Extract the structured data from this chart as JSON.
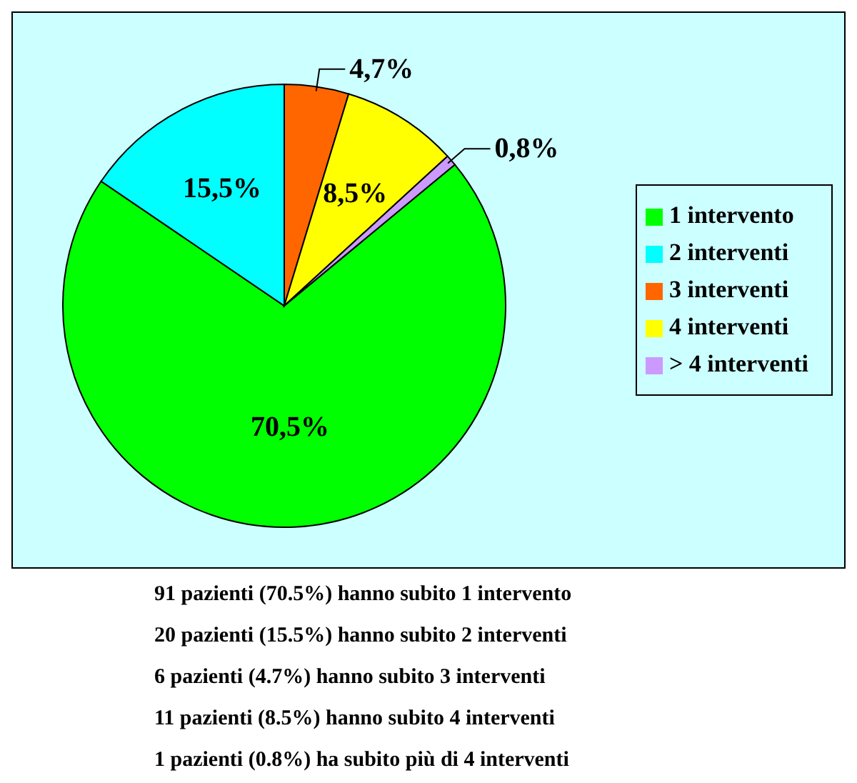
{
  "chart_data": {
    "type": "pie",
    "categories": [
      "1 intervento",
      "2 interventi",
      "3 interventi",
      "4 interventi",
      "> 4 interventi"
    ],
    "values": [
      70.5,
      15.5,
      4.7,
      8.5,
      0.8
    ],
    "value_labels": [
      "70,5%",
      "15,5%",
      "4,7%",
      "8,5%",
      "0,8%"
    ],
    "colors": [
      "#00ff00",
      "#00ffff",
      "#ff6600",
      "#ffff00",
      "#cc99ff"
    ],
    "legend": "right",
    "annotations": [
      "91 pazienti (70.5%) hanno subito 1 intervento",
      "20 pazienti (15.5%) hanno subito 2 interventi",
      "6 pazienti (4.7%) hanno subito 3 interventi",
      "11 pazienti (8.5%) hanno subito 4 interventi",
      "1 pazienti (0.8%) ha subito più di 4 interventi"
    ]
  }
}
